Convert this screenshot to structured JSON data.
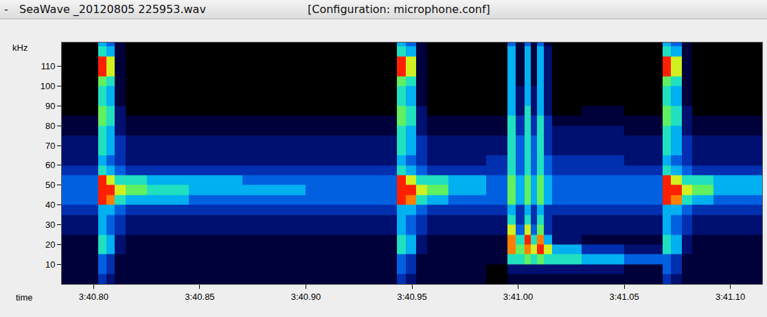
{
  "chart_data": {
    "type": "heatmap",
    "header_mark": "-",
    "title": "SeaWave _20120805 225953.wav",
    "subtitle": "[Configuration: microphone.conf]",
    "xlabel": "time",
    "ylabel": "kHz",
    "xlim": [
      220.785,
      221.115
    ],
    "xticks": [
      {
        "value": 220.8,
        "label": "3:40.80"
      },
      {
        "value": 220.85,
        "label": "3:40.85"
      },
      {
        "value": 220.9,
        "label": "3:40.90"
      },
      {
        "value": 220.95,
        "label": "3:40.95"
      },
      {
        "value": 221.0,
        "label": "3:41.00"
      },
      {
        "value": 221.05,
        "label": "3:41.05"
      },
      {
        "value": 221.1,
        "label": "3:41.10"
      }
    ],
    "ylim": [
      0,
      122
    ],
    "yticks": [
      10,
      20,
      30,
      40,
      50,
      60,
      70,
      80,
      90,
      100,
      110
    ],
    "grid": false,
    "x": [
      220.785,
      220.802,
      220.806,
      220.81,
      220.815,
      220.825,
      220.845,
      220.87,
      220.9,
      220.943,
      220.947,
      220.952,
      220.957,
      220.967,
      220.985,
      220.995,
      220.999,
      221.003,
      221.006,
      221.009,
      221.012,
      221.016,
      221.03,
      221.05,
      221.068,
      221.072,
      221.077,
      221.082,
      221.092,
      221.115
    ],
    "y": [
      0,
      5,
      10,
      15,
      20,
      25,
      30,
      35,
      40,
      45,
      50,
      55,
      60,
      65,
      70,
      75,
      80,
      85,
      90,
      95,
      100,
      105,
      110,
      115,
      120,
      125
    ],
    "zlim": [
      0,
      10
    ],
    "cells": [
      [
        1,
        1,
        1,
        1,
        1,
        2,
        2,
        3,
        4,
        4,
        4,
        3,
        2,
        2,
        2,
        1,
        1,
        0,
        0,
        0,
        0,
        0,
        0,
        0,
        0
      ],
      [
        3,
        4,
        4,
        6,
        6,
        5,
        5,
        5,
        10,
        10,
        10,
        6,
        5,
        6,
        6,
        6,
        7,
        7,
        6,
        6,
        7,
        10,
        10,
        6,
        5
      ],
      [
        2,
        3,
        3,
        5,
        5,
        4,
        4,
        5,
        9,
        10,
        8,
        5,
        4,
        5,
        5,
        5,
        6,
        6,
        5,
        5,
        6,
        8,
        8,
        5,
        4
      ],
      [
        1,
        1,
        1,
        2,
        2,
        3,
        3,
        4,
        6,
        8,
        6,
        4,
        3,
        3,
        3,
        2,
        2,
        2,
        1,
        1,
        1,
        1,
        1,
        1,
        1
      ],
      [
        1,
        1,
        1,
        1,
        1,
        2,
        2,
        3,
        5,
        7,
        6,
        3,
        2,
        2,
        2,
        1,
        1,
        0,
        0,
        0,
        0,
        0,
        0,
        0,
        0
      ],
      [
        1,
        1,
        1,
        1,
        1,
        2,
        2,
        3,
        5,
        6,
        5,
        3,
        2,
        2,
        2,
        1,
        1,
        0,
        0,
        0,
        0,
        0,
        0,
        0,
        0
      ],
      [
        1,
        1,
        1,
        1,
        1,
        2,
        2,
        3,
        4,
        5,
        5,
        3,
        2,
        2,
        2,
        1,
        1,
        0,
        0,
        0,
        0,
        0,
        0,
        0,
        0
      ],
      [
        1,
        1,
        1,
        1,
        1,
        2,
        2,
        3,
        4,
        5,
        4,
        3,
        2,
        2,
        2,
        1,
        1,
        0,
        0,
        0,
        0,
        0,
        0,
        0,
        0
      ],
      [
        1,
        1,
        1,
        1,
        1,
        2,
        2,
        3,
        4,
        4,
        4,
        3,
        2,
        2,
        2,
        1,
        1,
        0,
        0,
        0,
        0,
        0,
        0,
        0,
        0
      ],
      [
        3,
        4,
        4,
        6,
        6,
        5,
        5,
        5,
        10,
        10,
        10,
        6,
        5,
        6,
        6,
        6,
        7,
        7,
        6,
        6,
        7,
        10,
        10,
        6,
        5
      ],
      [
        2,
        3,
        3,
        5,
        5,
        4,
        4,
        5,
        9,
        10,
        8,
        5,
        4,
        5,
        5,
        5,
        6,
        6,
        5,
        5,
        6,
        8,
        8,
        5,
        4
      ],
      [
        1,
        1,
        1,
        2,
        2,
        3,
        3,
        4,
        6,
        8,
        6,
        4,
        3,
        3,
        3,
        2,
        2,
        2,
        1,
        1,
        1,
        1,
        1,
        1,
        1
      ],
      [
        1,
        1,
        1,
        1,
        1,
        2,
        2,
        3,
        5,
        7,
        6,
        3,
        2,
        2,
        2,
        1,
        1,
        0,
        0,
        0,
        0,
        0,
        0,
        0,
        0
      ],
      [
        1,
        1,
        1,
        1,
        1,
        2,
        2,
        3,
        4,
        5,
        5,
        3,
        2,
        2,
        2,
        1,
        1,
        0,
        0,
        0,
        0,
        0,
        0,
        0,
        0
      ],
      [
        0,
        0,
        1,
        1,
        1,
        2,
        2,
        3,
        4,
        4,
        4,
        3,
        3,
        2,
        2,
        1,
        1,
        0,
        0,
        0,
        0,
        0,
        0,
        0,
        0
      ],
      [
        1,
        2,
        6,
        9,
        9,
        8,
        6,
        5,
        7,
        7,
        7,
        6,
        6,
        6,
        6,
        6,
        6,
        5,
        5,
        5,
        5,
        5,
        5,
        5,
        4
      ],
      [
        1,
        2,
        6,
        7,
        6,
        4,
        3,
        3,
        5,
        5,
        5,
        4,
        4,
        4,
        4,
        3,
        3,
        2,
        2,
        2,
        1,
        1,
        1,
        1,
        1
      ],
      [
        1,
        2,
        7,
        9,
        10,
        8,
        6,
        5,
        7,
        7,
        7,
        6,
        6,
        6,
        6,
        6,
        6,
        6,
        5,
        5,
        5,
        5,
        5,
        5,
        4
      ],
      [
        1,
        2,
        6,
        8,
        6,
        4,
        3,
        3,
        5,
        5,
        5,
        4,
        4,
        4,
        4,
        3,
        3,
        2,
        2,
        2,
        1,
        1,
        1,
        1,
        1
      ],
      [
        1,
        2,
        7,
        10,
        9,
        7,
        6,
        5,
        7,
        7,
        7,
        6,
        6,
        6,
        6,
        6,
        6,
        5,
        5,
        5,
        5,
        5,
        5,
        5,
        4
      ],
      [
        1,
        2,
        6,
        8,
        5,
        3,
        3,
        3,
        5,
        5,
        5,
        4,
        4,
        3,
        3,
        3,
        3,
        2,
        2,
        2,
        2,
        2,
        2,
        2,
        1
      ],
      [
        1,
        2,
        6,
        5,
        2,
        2,
        2,
        3,
        4,
        4,
        4,
        3,
        3,
        2,
        2,
        2,
        1,
        0,
        0,
        0,
        0,
        0,
        0,
        0,
        0
      ],
      [
        1,
        2,
        5,
        3,
        1,
        2,
        2,
        3,
        4,
        4,
        4,
        3,
        3,
        2,
        2,
        2,
        1,
        1,
        0,
        0,
        0,
        0,
        0,
        0,
        0
      ],
      [
        1,
        1,
        4,
        2,
        1,
        2,
        2,
        3,
        4,
        4,
        4,
        3,
        2,
        2,
        2,
        1,
        1,
        0,
        0,
        0,
        0,
        0,
        0,
        0,
        0
      ],
      [
        3,
        4,
        4,
        6,
        6,
        5,
        5,
        5,
        10,
        10,
        10,
        6,
        5,
        6,
        6,
        6,
        7,
        7,
        6,
        6,
        7,
        10,
        10,
        6,
        5
      ],
      [
        2,
        3,
        3,
        5,
        5,
        4,
        4,
        5,
        9,
        10,
        8,
        5,
        4,
        5,
        5,
        5,
        6,
        6,
        5,
        5,
        6,
        8,
        8,
        5,
        4
      ],
      [
        1,
        1,
        1,
        2,
        2,
        3,
        3,
        4,
        6,
        8,
        6,
        4,
        3,
        3,
        3,
        2,
        2,
        2,
        1,
        1,
        1,
        1,
        1,
        1,
        1
      ],
      [
        1,
        1,
        1,
        1,
        1,
        2,
        2,
        3,
        5,
        7,
        6,
        3,
        2,
        2,
        2,
        1,
        1,
        0,
        0,
        0,
        0,
        0,
        0,
        0,
        0
      ],
      [
        1,
        1,
        1,
        1,
        1,
        2,
        2,
        3,
        4,
        5,
        5,
        3,
        2,
        2,
        2,
        1,
        1,
        0,
        0,
        0,
        0,
        0,
        0,
        0,
        0
      ]
    ]
  }
}
